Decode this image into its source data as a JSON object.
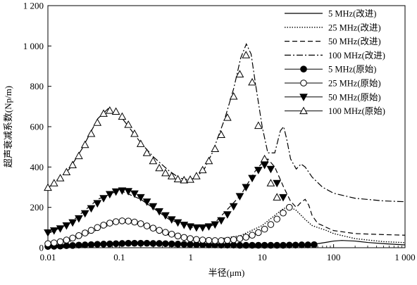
{
  "chart_data": {
    "type": "line",
    "title": "",
    "xlabel": "半径(μm)",
    "ylabel": "超声衰减系数(Np/m)",
    "x_scale": "log",
    "xlim": [
      0.01,
      1000
    ],
    "ylim": [
      0,
      1200
    ],
    "x_ticks": [
      0.01,
      0.1,
      1,
      10,
      100,
      1000
    ],
    "x_tick_labels": [
      "0.01",
      "0.1",
      "1",
      "10",
      "100",
      "1 000"
    ],
    "y_ticks": [
      0,
      200,
      400,
      600,
      800,
      1000,
      1200
    ],
    "y_tick_labels": [
      "0",
      "200",
      "400",
      "600",
      "800",
      "1 000",
      "1 200"
    ],
    "grid": false,
    "legend_position": "top-right",
    "series": [
      {
        "name": "5 MHz(改进)",
        "kind": "line",
        "dash": "solid",
        "color": "#000000",
        "x": [
          0.01,
          0.02,
          0.05,
          0.1,
          0.2,
          0.5,
          1,
          2,
          5,
          10,
          20,
          30,
          40,
          50,
          60,
          80,
          100,
          130,
          200,
          300,
          500,
          1000
        ],
        "y": [
          5,
          8,
          13,
          18,
          21,
          19,
          15,
          13,
          12,
          12,
          12,
          13,
          14,
          16,
          20,
          27,
          33,
          36,
          33,
          26,
          20,
          14
        ]
      },
      {
        "name": "25 MHz(改进)",
        "kind": "line",
        "dash": "dotted",
        "color": "#000000",
        "x": [
          0.01,
          0.02,
          0.05,
          0.1,
          0.2,
          0.5,
          1,
          2,
          5,
          10,
          15,
          20,
          25,
          30,
          40,
          50,
          60,
          80,
          100,
          200,
          500,
          1000
        ],
        "y": [
          18,
          30,
          90,
          130,
          115,
          62,
          40,
          38,
          60,
          110,
          160,
          195,
          200,
          185,
          140,
          110,
          100,
          85,
          70,
          45,
          30,
          25
        ]
      },
      {
        "name": "50 MHz(改进)",
        "kind": "line",
        "dash": "dashed",
        "color": "#000000",
        "x": [
          0.01,
          0.02,
          0.05,
          0.1,
          0.2,
          0.5,
          1,
          2,
          5,
          8,
          10,
          12,
          15,
          20,
          25,
          30,
          35,
          40,
          45,
          50,
          60,
          70,
          80,
          100,
          200,
          500,
          1000
        ],
        "y": [
          70,
          120,
          240,
          285,
          240,
          140,
          100,
          110,
          260,
          380,
          420,
          440,
          400,
          300,
          230,
          200,
          225,
          240,
          210,
          160,
          120,
          110,
          100,
          85,
          70,
          65,
          62
        ]
      },
      {
        "name": "100 MHz(改进)",
        "kind": "line",
        "dash": "dashdot",
        "color": "#000000",
        "x": [
          0.01,
          0.02,
          0.03,
          0.05,
          0.07,
          0.1,
          0.2,
          0.3,
          0.5,
          0.7,
          1,
          1.5,
          2,
          3,
          4,
          5,
          6,
          7,
          8,
          10,
          12,
          15,
          18,
          20,
          22,
          25,
          30,
          35,
          40,
          50,
          70,
          100,
          200,
          500,
          1000
        ],
        "y": [
          295,
          390,
          490,
          640,
          690,
          660,
          520,
          450,
          380,
          345,
          335,
          380,
          470,
          640,
          790,
          940,
          1010,
          960,
          820,
          600,
          470,
          470,
          580,
          600,
          540,
          440,
          390,
          415,
          400,
          350,
          300,
          270,
          245,
          232,
          228
        ]
      },
      {
        "name": "5 MHz(原始)",
        "kind": "marker",
        "marker": "circle",
        "fill": "#000000",
        "color": "#000000",
        "x": [
          0.01,
          0.0122,
          0.0149,
          0.0182,
          0.0222,
          0.0271,
          0.0331,
          0.0404,
          0.0493,
          0.0602,
          0.0735,
          0.0897,
          0.1095,
          0.1337,
          0.1632,
          0.1993,
          0.2433,
          0.2971,
          0.3627,
          0.4429,
          0.5408,
          0.6602,
          0.8061,
          0.9843,
          1.2018,
          1.4674,
          1.7917,
          2.1876,
          2.6711,
          3.2614,
          3.9822,
          4.8623,
          5.937,
          7.2491,
          8.8512,
          10.8074,
          13.196,
          16.1125,
          19.6736,
          24.0217,
          29.3308,
          35.8134,
          43.7288,
          53.3935
        ],
        "y": [
          6,
          7,
          8,
          10,
          11,
          13,
          14,
          15,
          17,
          18,
          19,
          20,
          21,
          22,
          22,
          22,
          22,
          21,
          21,
          20,
          19,
          18,
          17,
          16,
          15,
          15,
          14,
          14,
          13,
          13,
          13,
          12,
          12,
          12,
          12,
          12,
          12,
          12,
          12,
          13,
          13,
          14,
          14,
          15
        ]
      },
      {
        "name": "25 MHz(原始)",
        "kind": "marker",
        "marker": "circle",
        "fill": "#ffffff",
        "color": "#000000",
        "x": [
          0.01,
          0.0122,
          0.0149,
          0.0182,
          0.0222,
          0.0271,
          0.0331,
          0.0404,
          0.0493,
          0.0602,
          0.0735,
          0.0897,
          0.1095,
          0.1337,
          0.1632,
          0.1993,
          0.2433,
          0.2971,
          0.3627,
          0.4429,
          0.5408,
          0.6602,
          0.8061,
          0.9843,
          1.2018,
          1.4674,
          1.7917,
          2.1876,
          2.6711,
          3.2614,
          3.9822,
          4.8623,
          5.937,
          7.2491,
          8.8512,
          10.8074,
          13.196,
          16.1125,
          19.6736,
          24.0217
        ],
        "y": [
          20,
          24,
          30,
          38,
          48,
          60,
          73,
          86,
          100,
          112,
          122,
          129,
          133,
          132,
          127,
          119,
          108,
          97,
          86,
          76,
          67,
          58,
          51,
          45,
          41,
          38,
          36,
          35,
          35,
          37,
          40,
          45,
          52,
          62,
          75,
          92,
          115,
          142,
          172,
          200
        ]
      },
      {
        "name": "50 MHz(原始)",
        "kind": "marker",
        "marker": "triangle-down",
        "fill": "#000000",
        "color": "#000000",
        "x": [
          0.01,
          0.0122,
          0.0149,
          0.0182,
          0.0222,
          0.0271,
          0.0331,
          0.0404,
          0.0493,
          0.0602,
          0.0735,
          0.0897,
          0.1095,
          0.1337,
          0.1632,
          0.1993,
          0.2433,
          0.2971,
          0.3627,
          0.4429,
          0.5408,
          0.6602,
          0.8061,
          0.9843,
          1.2018,
          1.4674,
          1.7917,
          2.1876,
          2.6711,
          3.2614,
          3.9822,
          4.8623,
          5.937,
          7.2491,
          8.8512,
          10.8074,
          13.196,
          16.1125,
          19.6736
        ],
        "y": [
          75,
          85,
          95,
          110,
          125,
          145,
          170,
          195,
          220,
          245,
          265,
          278,
          283,
          280,
          268,
          250,
          228,
          205,
          180,
          160,
          140,
          125,
          113,
          105,
          100,
          100,
          105,
          115,
          135,
          165,
          205,
          255,
          300,
          345,
          385,
          410,
          390,
          320,
          250
        ]
      },
      {
        "name": "100 MHz(原始)",
        "kind": "marker",
        "marker": "triangle-up",
        "fill": "#ffffff",
        "color": "#000000",
        "x": [
          0.01,
          0.0122,
          0.0149,
          0.0182,
          0.0222,
          0.0271,
          0.0331,
          0.0404,
          0.0493,
          0.0602,
          0.0735,
          0.0897,
          0.1095,
          0.1337,
          0.1632,
          0.1993,
          0.2433,
          0.2971,
          0.3627,
          0.4429,
          0.5408,
          0.6602,
          0.8061,
          0.9843,
          1.2018,
          1.4674,
          1.7917,
          2.1876,
          2.6711,
          3.2614,
          3.9822,
          4.8623,
          5.937,
          7.2491,
          8.8512,
          10.8074,
          13.196,
          16.1125
        ],
        "y": [
          298,
          320,
          345,
          375,
          410,
          455,
          510,
          565,
          620,
          665,
          680,
          675,
          650,
          610,
          565,
          515,
          470,
          430,
          395,
          370,
          355,
          340,
          335,
          338,
          355,
          385,
          430,
          490,
          560,
          645,
          750,
          860,
          955,
          820,
          605,
          440,
          320,
          250
        ]
      }
    ]
  }
}
